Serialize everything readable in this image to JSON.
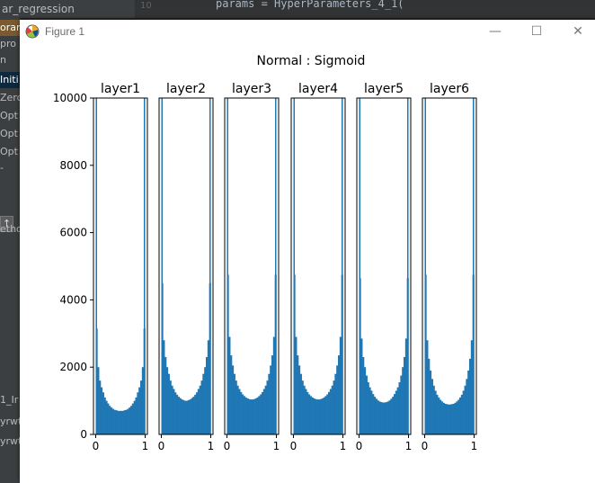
{
  "ide": {
    "file_tab": "ar_regression",
    "gutter_number": "10",
    "code_line": "params = HyperParameters_4_1(",
    "left_rows": [
      "orar",
      "pro",
      "n",
      "Initi",
      "Zero",
      "Opt",
      "Opt",
      "Opt",
      "-",
      "etho",
      "1_Ir",
      "yrwt",
      "yrwt"
    ]
  },
  "window": {
    "title": "Figure 1",
    "minimize_symbol": "—",
    "maximize_symbol": "☐",
    "close_symbol": "✕"
  },
  "colors": {
    "bar": "#1f77b4",
    "axis": "#000000",
    "background": "#ffffff"
  },
  "chart_data": {
    "type": "bar",
    "suptitle": "Normal : Sigmoid",
    "y_ticks": [
      "0",
      "2000",
      "4000",
      "6000",
      "8000",
      "10000"
    ],
    "ylim": [
      0,
      10000
    ],
    "x_ticks": [
      "0",
      "1"
    ],
    "xlim": [
      0,
      1
    ],
    "bins": 30,
    "subplots": [
      {
        "title": "layer1",
        "values": [
          3150,
          2000,
          1600,
          1400,
          1250,
          1100,
          1000,
          920,
          850,
          800,
          760,
          730,
          720,
          700,
          700,
          700,
          700,
          720,
          730,
          760,
          800,
          850,
          920,
          1000,
          1100,
          1250,
          1400,
          1600,
          2000,
          3150
        ]
      },
      {
        "title": "layer2",
        "values": [
          4500,
          2800,
          2300,
          2000,
          1800,
          1600,
          1450,
          1350,
          1250,
          1180,
          1120,
          1080,
          1040,
          1020,
          1000,
          1000,
          1020,
          1040,
          1080,
          1120,
          1180,
          1250,
          1350,
          1450,
          1600,
          1800,
          2000,
          2300,
          2800,
          4500
        ]
      },
      {
        "title": "layer3",
        "values": [
          4750,
          2900,
          2350,
          2050,
          1800,
          1600,
          1450,
          1350,
          1260,
          1190,
          1140,
          1100,
          1070,
          1050,
          1040,
          1040,
          1050,
          1070,
          1100,
          1140,
          1190,
          1260,
          1350,
          1450,
          1600,
          1800,
          2050,
          2350,
          2900,
          4750
        ]
      },
      {
        "title": "layer4",
        "values": [
          4750,
          2900,
          2350,
          2050,
          1800,
          1600,
          1450,
          1350,
          1260,
          1190,
          1140,
          1100,
          1070,
          1050,
          1040,
          1040,
          1050,
          1070,
          1100,
          1140,
          1190,
          1260,
          1350,
          1450,
          1600,
          1800,
          2050,
          2350,
          2900,
          4750
        ]
      },
      {
        "title": "layer5",
        "values": [
          4650,
          2850,
          2300,
          2000,
          1750,
          1550,
          1400,
          1300,
          1200,
          1120,
          1060,
          1010,
          980,
          960,
          950,
          950,
          960,
          980,
          1010,
          1060,
          1120,
          1200,
          1300,
          1400,
          1550,
          1750,
          2000,
          2300,
          2850,
          4650
        ]
      },
      {
        "title": "layer6",
        "values": [
          4750,
          2800,
          2250,
          1900,
          1650,
          1450,
          1300,
          1180,
          1100,
          1030,
          980,
          940,
          910,
          900,
          890,
          890,
          900,
          910,
          940,
          980,
          1030,
          1100,
          1180,
          1300,
          1450,
          1650,
          1900,
          2250,
          2800,
          4750
        ]
      }
    ]
  }
}
